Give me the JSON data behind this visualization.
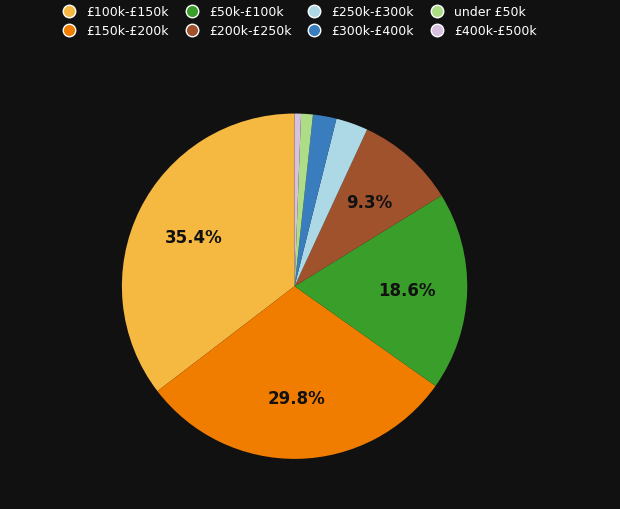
{
  "labels": [
    "£100k-£150k",
    "£150k-£200k",
    "£50k-£100k",
    "£200k-£250k",
    "£250k-£300k",
    "£300k-£400k",
    "under £50k",
    "£400k-£500k"
  ],
  "values": [
    35.4,
    29.8,
    18.6,
    9.3,
    3.0,
    2.2,
    1.1,
    0.6
  ],
  "colors": [
    "#F5B942",
    "#F07D00",
    "#3A9E2A",
    "#A0522D",
    "#ADD8E6",
    "#3A7DBF",
    "#ADDE87",
    "#D8C0E0"
  ],
  "show_labels": [
    true,
    true,
    true,
    true,
    false,
    false,
    false,
    false
  ],
  "background_color": "#111111",
  "text_color": "#111111",
  "legend_text_color": "#ffffff",
  "startangle": 90
}
